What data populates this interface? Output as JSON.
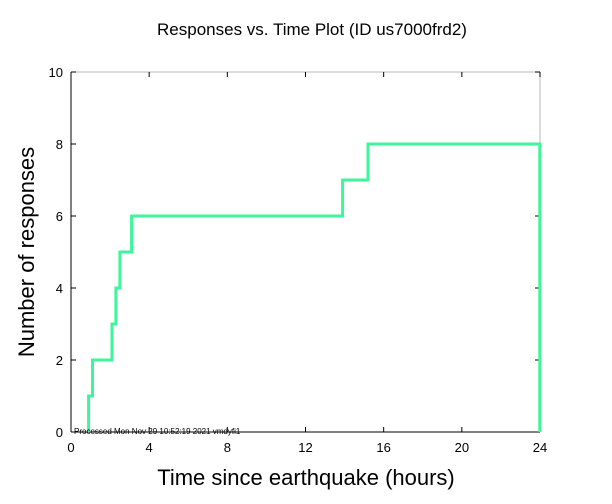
{
  "chart_data": {
    "type": "line",
    "step": true,
    "title": "Responses vs. Time Plot (ID us7000frd2)",
    "xlabel": "Time since earthquake (hours)",
    "ylabel": "Number of responses",
    "xlim": [
      0,
      24
    ],
    "ylim": [
      0,
      10
    ],
    "xticks": [
      0,
      4,
      8,
      12,
      16,
      20,
      24
    ],
    "yticks": [
      0,
      2,
      4,
      6,
      8,
      10
    ],
    "grid": false,
    "line_color": "#3ef59b",
    "footnote": "Processed Mon Nov 29 10:52:19 2021 vmdyfi1",
    "series": [
      {
        "x": [
          0.9,
          0.9,
          1.1,
          1.1,
          2.1,
          2.1,
          2.3,
          2.3,
          2.5,
          2.5,
          3.1,
          3.1,
          13.9,
          13.9,
          15.2,
          15.2,
          23.99,
          23.99
        ],
        "y": [
          0,
          1,
          1,
          2,
          2,
          3,
          3,
          4,
          4,
          5,
          5,
          6,
          6,
          7,
          7,
          8,
          8,
          0
        ]
      }
    ]
  }
}
